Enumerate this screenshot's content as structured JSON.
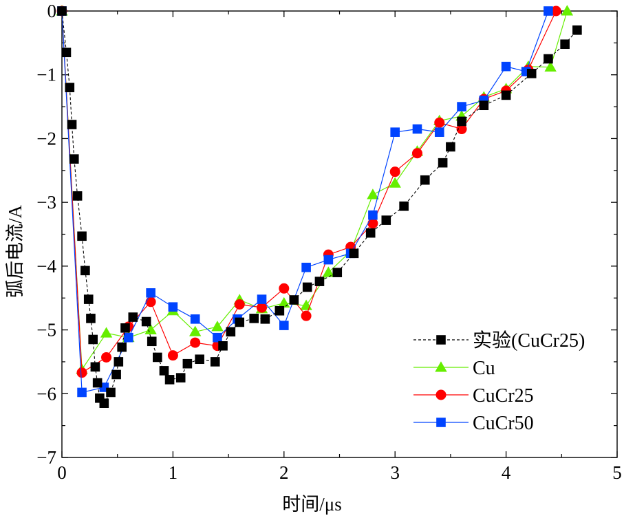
{
  "chart_data": {
    "type": "scatter",
    "xlabel": "时间/μs",
    "ylabel": "弧后电流/A",
    "xlim": [
      0,
      5
    ],
    "ylim": [
      -7,
      0
    ],
    "xticks": [
      0,
      1,
      2,
      3,
      4,
      5
    ],
    "yticks": [
      0,
      -1,
      -2,
      -3,
      -4,
      -5,
      -6,
      -7
    ],
    "grid": false,
    "legend_position": "right",
    "series": [
      {
        "name": "实验(CuCr25)",
        "color": "#000000",
        "marker": "square",
        "line_style": "dashed",
        "points": [
          [
            0.0,
            0.0
          ],
          [
            0.04,
            -0.65
          ],
          [
            0.07,
            -1.2
          ],
          [
            0.09,
            -1.78
          ],
          [
            0.11,
            -2.32
          ],
          [
            0.14,
            -2.9
          ],
          [
            0.18,
            -3.53
          ],
          [
            0.21,
            -4.07
          ],
          [
            0.24,
            -4.52
          ],
          [
            0.26,
            -4.82
          ],
          [
            0.28,
            -5.15
          ],
          [
            0.3,
            -5.58
          ],
          [
            0.32,
            -5.83
          ],
          [
            0.34,
            -6.07
          ],
          [
            0.38,
            -6.15
          ],
          [
            0.44,
            -5.98
          ],
          [
            0.49,
            -5.7
          ],
          [
            0.51,
            -5.5
          ],
          [
            0.54,
            -5.27
          ],
          [
            0.57,
            -4.97
          ],
          [
            0.64,
            -4.8
          ],
          [
            0.76,
            -4.87
          ],
          [
            0.81,
            -5.18
          ],
          [
            0.86,
            -5.43
          ],
          [
            0.92,
            -5.64
          ],
          [
            0.97,
            -5.78
          ],
          [
            1.07,
            -5.75
          ],
          [
            1.13,
            -5.53
          ],
          [
            1.24,
            -5.46
          ],
          [
            1.38,
            -5.5
          ],
          [
            1.45,
            -5.25
          ],
          [
            1.52,
            -5.03
          ],
          [
            1.6,
            -4.88
          ],
          [
            1.73,
            -4.82
          ],
          [
            1.83,
            -4.83
          ],
          [
            1.96,
            -4.7
          ],
          [
            2.09,
            -4.53
          ],
          [
            2.21,
            -4.33
          ],
          [
            2.32,
            -4.24
          ],
          [
            2.48,
            -4.1
          ],
          [
            2.63,
            -3.8
          ],
          [
            2.78,
            -3.48
          ],
          [
            2.92,
            -3.28
          ],
          [
            3.08,
            -3.06
          ],
          [
            3.27,
            -2.65
          ],
          [
            3.43,
            -2.38
          ],
          [
            3.5,
            -2.13
          ],
          [
            3.6,
            -1.73
          ],
          [
            3.8,
            -1.48
          ],
          [
            4.0,
            -1.32
          ],
          [
            4.23,
            -0.98
          ],
          [
            4.38,
            -0.75
          ],
          [
            4.53,
            -0.52
          ],
          [
            4.64,
            -0.3
          ]
        ]
      },
      {
        "name": "Cu",
        "color": "#66ee00",
        "marker": "triangle",
        "line_style": "solid",
        "points": [
          [
            0.0,
            0.0
          ],
          [
            0.18,
            -5.62
          ],
          [
            0.4,
            -5.05
          ],
          [
            0.6,
            -5.12
          ],
          [
            0.8,
            -5.0
          ],
          [
            1.0,
            -4.7
          ],
          [
            1.2,
            -5.03
          ],
          [
            1.4,
            -4.95
          ],
          [
            1.6,
            -4.53
          ],
          [
            1.8,
            -4.67
          ],
          [
            2.0,
            -4.58
          ],
          [
            2.2,
            -4.62
          ],
          [
            2.4,
            -4.1
          ],
          [
            2.6,
            -3.77
          ],
          [
            2.8,
            -2.88
          ],
          [
            3.0,
            -2.7
          ],
          [
            3.2,
            -2.2
          ],
          [
            3.4,
            -1.72
          ],
          [
            3.6,
            -1.65
          ],
          [
            3.8,
            -1.35
          ],
          [
            4.0,
            -1.22
          ],
          [
            4.2,
            -0.87
          ],
          [
            4.4,
            -0.88
          ],
          [
            4.55,
            0.0
          ]
        ]
      },
      {
        "name": "CuCr25",
        "color": "#ff0000",
        "marker": "circle",
        "line_style": "solid",
        "points": [
          [
            0.0,
            0.0
          ],
          [
            0.18,
            -5.67
          ],
          [
            0.4,
            -5.43
          ],
          [
            0.6,
            -4.95
          ],
          [
            0.8,
            -4.56
          ],
          [
            1.0,
            -5.4
          ],
          [
            1.2,
            -5.2
          ],
          [
            1.4,
            -5.25
          ],
          [
            1.6,
            -4.6
          ],
          [
            1.8,
            -4.65
          ],
          [
            2.0,
            -4.35
          ],
          [
            2.2,
            -4.78
          ],
          [
            2.4,
            -3.82
          ],
          [
            2.6,
            -3.7
          ],
          [
            2.8,
            -3.33
          ],
          [
            3.0,
            -2.52
          ],
          [
            3.2,
            -2.23
          ],
          [
            3.4,
            -1.75
          ],
          [
            3.6,
            -1.85
          ],
          [
            3.8,
            -1.38
          ],
          [
            4.0,
            -1.25
          ],
          [
            4.2,
            -0.92
          ],
          [
            4.45,
            0.0
          ]
        ]
      },
      {
        "name": "CuCr50",
        "color": "#0044ff",
        "marker": "square",
        "line_style": "solid",
        "points": [
          [
            0.0,
            0.0
          ],
          [
            0.18,
            -5.98
          ],
          [
            0.38,
            -5.9
          ],
          [
            0.6,
            -5.12
          ],
          [
            0.8,
            -4.42
          ],
          [
            1.0,
            -4.64
          ],
          [
            1.2,
            -4.83
          ],
          [
            1.4,
            -5.12
          ],
          [
            1.58,
            -4.83
          ],
          [
            1.8,
            -4.52
          ],
          [
            2.0,
            -4.93
          ],
          [
            2.2,
            -4.02
          ],
          [
            2.4,
            -3.9
          ],
          [
            2.6,
            -3.8
          ],
          [
            2.8,
            -3.2
          ],
          [
            3.0,
            -1.9
          ],
          [
            3.2,
            -1.85
          ],
          [
            3.4,
            -1.9
          ],
          [
            3.6,
            -1.5
          ],
          [
            3.8,
            -1.4
          ],
          [
            4.0,
            -0.87
          ],
          [
            4.18,
            -0.95
          ],
          [
            4.38,
            0.0
          ]
        ]
      }
    ]
  }
}
